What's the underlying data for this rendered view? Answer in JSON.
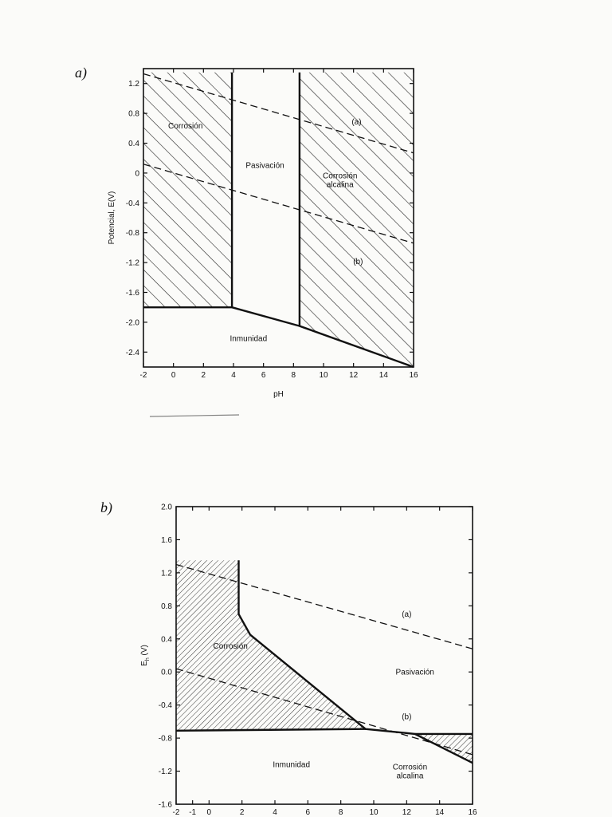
{
  "chart_data": [
    {
      "panel": "a)",
      "type": "line",
      "xlabel": "pH",
      "ylabel": "Potencial, E(V)",
      "xlim": [
        -2,
        16
      ],
      "ylim": [
        -2.6,
        1.4
      ],
      "xticks": [
        -2,
        0,
        2,
        4,
        6,
        8,
        10,
        12,
        14,
        16
      ],
      "yticks": [
        1.2,
        0.8,
        0.4,
        0,
        -0.4,
        -0.8,
        -1.2,
        -1.6,
        -2.0,
        -2.4
      ],
      "series": [
        {
          "name": "(a)",
          "style": "dashed",
          "x": [
            -2,
            16
          ],
          "y": [
            1.33,
            0.27
          ]
        },
        {
          "name": "(b)",
          "style": "dashed",
          "x": [
            -2,
            16
          ],
          "y": [
            0.12,
            -0.94
          ]
        },
        {
          "name": "boundary",
          "style": "solid",
          "x": [
            -2,
            3.9,
            3.9
          ],
          "y": [
            -1.8,
            -1.8,
            1.35
          ]
        },
        {
          "name": "boundary",
          "style": "solid",
          "x": [
            3.9,
            8.4,
            8.4
          ],
          "y": [
            -1.8,
            -2.05,
            1.35
          ]
        },
        {
          "name": "boundary",
          "style": "solid",
          "x": [
            8.4,
            16
          ],
          "y": [
            -2.05,
            -2.6
          ]
        }
      ],
      "regions": [
        {
          "label": "Corrosión",
          "x": 0.8,
          "y": 0.6,
          "hatched": true
        },
        {
          "label": "Pasivación",
          "x": 6.1,
          "y": 0.07,
          "hatched": false
        },
        {
          "label": "Corrosión\nalcalina",
          "x": 11.1,
          "y": -0.07,
          "hatched": true
        },
        {
          "label": "Inmunidad",
          "x": 5.0,
          "y": -2.25,
          "hatched": false
        },
        {
          "label": "(a)",
          "x": 12.2,
          "y": 0.65,
          "hatched": false
        },
        {
          "label": "(b)",
          "x": 12.3,
          "y": -1.22,
          "hatched": false
        }
      ],
      "grid": false
    },
    {
      "panel": "b)",
      "type": "line",
      "xlabel": "",
      "ylabel": "E_h (V)",
      "xlim": [
        -2,
        16
      ],
      "ylim": [
        -1.6,
        2.0
      ],
      "xticks": [
        -2,
        -1,
        0,
        2,
        4,
        6,
        8,
        10,
        12,
        14,
        16
      ],
      "yticks": [
        2.0,
        1.6,
        1.2,
        0.8,
        0.4,
        0.0,
        -0.4,
        -0.8,
        -1.2,
        -1.6
      ],
      "series": [
        {
          "name": "(a)",
          "style": "dashed",
          "x": [
            -2,
            16
          ],
          "y": [
            1.3,
            0.28
          ]
        },
        {
          "name": "(b)",
          "style": "dashed",
          "x": [
            -2,
            16
          ],
          "y": [
            0.04,
            -1.0
          ]
        },
        {
          "name": "boundary",
          "style": "solid",
          "x": [
            1.8,
            1.8,
            2.5,
            9.5,
            12.5,
            16
          ],
          "y": [
            1.35,
            0.7,
            0.45,
            -0.69,
            -0.75,
            -1.1
          ]
        },
        {
          "name": "boundary",
          "style": "solid",
          "x": [
            -2,
            9.5
          ],
          "y": [
            -0.71,
            -0.69
          ]
        },
        {
          "name": "boundary",
          "style": "solid",
          "x": [
            12.5,
            16
          ],
          "y": [
            -0.75,
            -0.75
          ]
        }
      ],
      "regions": [
        {
          "label": "Corrosión",
          "x": 1.3,
          "y": 0.28,
          "hatched": true
        },
        {
          "label": "Pasivación",
          "x": 12.5,
          "y": -0.03,
          "hatched": false
        },
        {
          "label": "Corrosión\nalcalina",
          "x": 12.2,
          "y": -1.18,
          "hatched": true
        },
        {
          "label": "Inmunidad",
          "x": 5.0,
          "y": -1.15,
          "hatched": false
        },
        {
          "label": "(a)",
          "x": 12.0,
          "y": 0.67,
          "hatched": false
        },
        {
          "label": "(b)",
          "x": 12.0,
          "y": -0.57,
          "hatched": false
        }
      ],
      "grid": false
    }
  ]
}
